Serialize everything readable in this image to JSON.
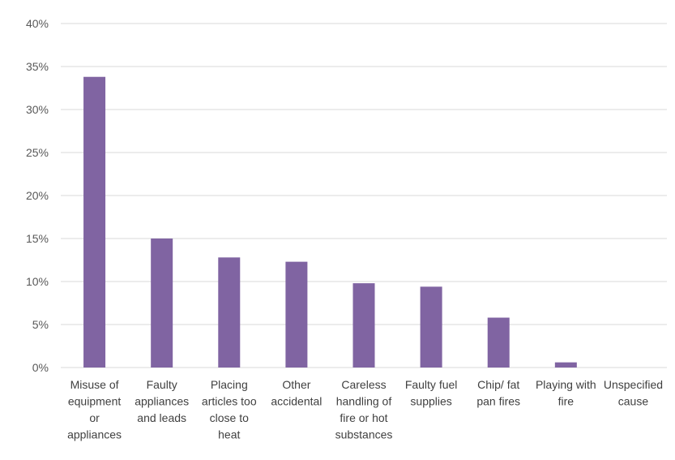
{
  "chart_data": {
    "type": "bar",
    "title": "",
    "xlabel": "",
    "ylabel": "",
    "categories": [
      "Misuse of equipment or appliances",
      "Faulty appliances and leads",
      "Placing articles too close to heat",
      "Other accidental",
      "Careless handling of fire or hot substances",
      "Faulty fuel supplies",
      "Chip/ fat pan fires",
      "Playing with fire",
      "Unspecified cause"
    ],
    "category_lines": [
      [
        "Misuse of",
        "equipment",
        "or",
        "appliances"
      ],
      [
        "Faulty",
        "appliances",
        "and leads"
      ],
      [
        "Placing",
        "articles too",
        "close to",
        "heat"
      ],
      [
        "Other",
        "accidental"
      ],
      [
        "Careless",
        "handling of",
        "fire or hot",
        "substances"
      ],
      [
        "Faulty fuel",
        "supplies"
      ],
      [
        "Chip/ fat",
        "pan fires"
      ],
      [
        "Playing with",
        "fire"
      ],
      [
        "Unspecified",
        "cause"
      ]
    ],
    "values": [
      0.338,
      0.15,
      0.128,
      0.123,
      0.098,
      0.094,
      0.058,
      0.006,
      0.0
    ],
    "ylim": [
      0,
      0.4
    ],
    "yticks": [
      0,
      0.05,
      0.1,
      0.15,
      0.2,
      0.25,
      0.3,
      0.35,
      0.4
    ],
    "ytick_labels": [
      "0%",
      "5%",
      "10%",
      "15%",
      "20%",
      "25%",
      "30%",
      "35%",
      "40%"
    ],
    "grid": true,
    "legend": "none",
    "colors": {
      "bar": "#8064A2",
      "grid": "#D9D9D9",
      "tick_text": "#595959"
    }
  }
}
